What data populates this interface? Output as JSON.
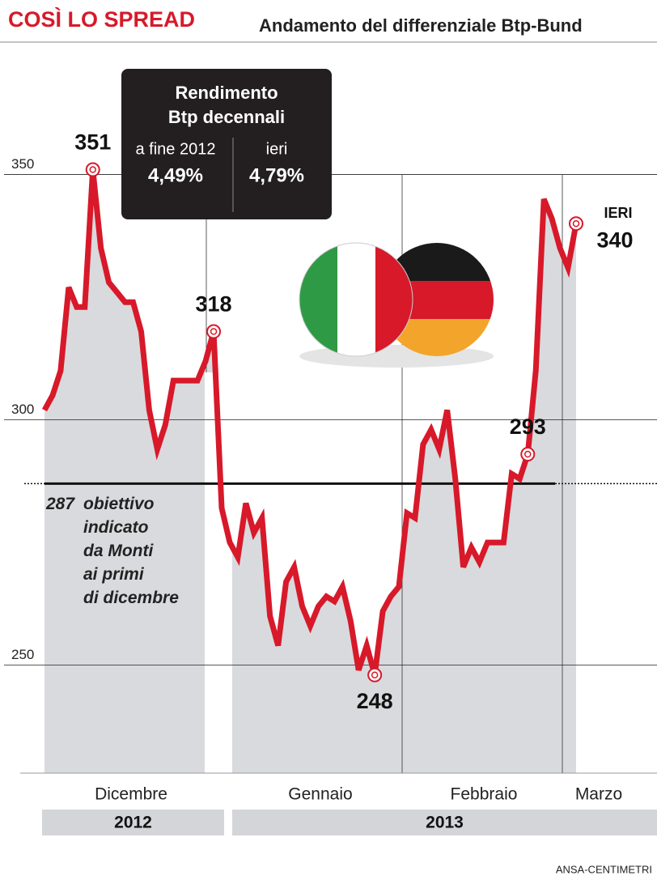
{
  "header": {
    "title": "COSÌ LO SPREAD",
    "subtitle": "Andamento del differenziale Btp-Bund"
  },
  "chart_data": {
    "type": "line",
    "color": "#d7192a",
    "area_color": "#d9dadd",
    "values": [
      302,
      305,
      310,
      327,
      323,
      323,
      351,
      335,
      328,
      326,
      324,
      324,
      318,
      302,
      294,
      299,
      308,
      308,
      308,
      308,
      312,
      318,
      282,
      275,
      272,
      283,
      277,
      280,
      260,
      254,
      267,
      270,
      262,
      258,
      262,
      264,
      263,
      266,
      259,
      249,
      254,
      248,
      261,
      264,
      266,
      281,
      280,
      295,
      298,
      294,
      302,
      288,
      270,
      274,
      271,
      275,
      275,
      275,
      289,
      288,
      293,
      310,
      345,
      341,
      335,
      331,
      340
    ],
    "point_labels": [
      null,
      null,
      null,
      null,
      null,
      null,
      351,
      null,
      null,
      null,
      null,
      null,
      null,
      null,
      null,
      null,
      null,
      null,
      null,
      null,
      null,
      318,
      null,
      null,
      null,
      null,
      null,
      null,
      null,
      null,
      null,
      null,
      null,
      null,
      null,
      null,
      null,
      null,
      null,
      null,
      null,
      248,
      null,
      null,
      null,
      null,
      null,
      null,
      null,
      null,
      null,
      null,
      null,
      null,
      null,
      null,
      null,
      null,
      null,
      null,
      293,
      null,
      null,
      null,
      null,
      null,
      340
    ],
    "last_label": "IERI",
    "x_labels": [
      "Dicembre",
      "Gennaio",
      "Febbraio",
      "Marzo"
    ],
    "years": [
      "2012",
      "2013"
    ],
    "ylim": [
      228,
      376
    ],
    "yticks": [
      250,
      300,
      350
    ],
    "grid": true,
    "target": {
      "value": 287,
      "note": [
        "obiettivo",
        "indicato",
        "da Monti",
        "ai primi",
        "di dicembre"
      ]
    }
  },
  "info_box": {
    "title": [
      "Rendimento",
      "Btp decennali"
    ],
    "left_label": "a fine 2012",
    "left_value": "4,49%",
    "right_label": "ieri",
    "right_value": "4,79%"
  },
  "source": "ANSA-CENTIMETRI"
}
